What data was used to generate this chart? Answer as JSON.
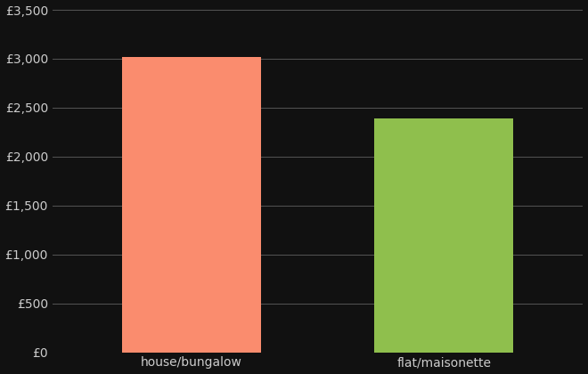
{
  "categories": [
    "house/bungalow",
    "flat/maisonette"
  ],
  "values": [
    3020,
    2390
  ],
  "bar_colors": [
    "#FA8C6E",
    "#8FBF4D"
  ],
  "background_color": "#111111",
  "text_color": "#cccccc",
  "grid_color": "#555555",
  "ylim": [
    0,
    3500
  ],
  "yticks": [
    0,
    500,
    1000,
    1500,
    2000,
    2500,
    3000,
    3500
  ],
  "bar_width": 0.55,
  "tick_fontsize": 10,
  "label_fontsize": 10
}
